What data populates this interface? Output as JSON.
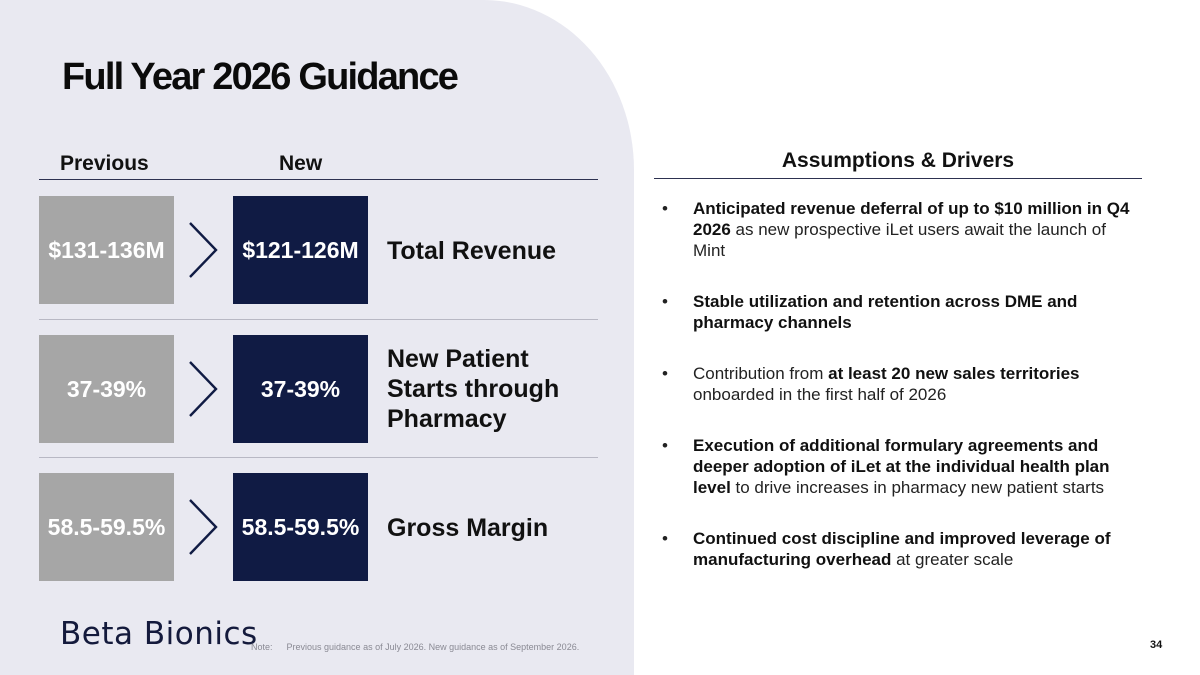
{
  "slide": {
    "title": "Full Year 2026 Guidance",
    "page_number": "34"
  },
  "table": {
    "previous_header": "Previous",
    "new_header": "New",
    "rows": [
      {
        "previous": "$131-136M",
        "new": "$121-126M",
        "metric": "Total Revenue"
      },
      {
        "previous": "37-39%",
        "new": "37-39%",
        "metric": "New Patient Starts through Pharmacy"
      },
      {
        "previous": "58.5-59.5%",
        "new": "58.5-59.5%",
        "metric": "Gross Margin"
      }
    ]
  },
  "assumptions": {
    "title": "Assumptions & Drivers",
    "bullets": [
      {
        "b1": "Anticipated revenue deferral of up to $10 million in Q4 2026",
        "t1": " as new prospective iLet users await the launch of Mint"
      },
      {
        "b1": "Stable utilization and retention across DME and pharmacy channels"
      },
      {
        "t0": "Contribution from ",
        "b1": "at least 20 new sales territories",
        "t1": " onboarded in the first half of 2026"
      },
      {
        "b1": "Execution of additional formulary agreements and deeper adoption of iLet at the individual health plan level",
        "t1": " to drive increases in pharmacy new patient starts"
      },
      {
        "b1": "Continued cost discipline and improved leverage of manufacturing overhead",
        "t1": " at greater scale"
      }
    ],
    "bullet_glyph": "•"
  },
  "footer": {
    "logo": "Beta Bionics",
    "note_label": "Note:",
    "note_text": "Previous guidance as of July 2026. New guidance as of September 2026."
  },
  "colors": {
    "panel_bg": "#e9e9f1",
    "previous_box": "#a6a6a6",
    "new_box": "#101b44",
    "rule": "#2d3150"
  }
}
